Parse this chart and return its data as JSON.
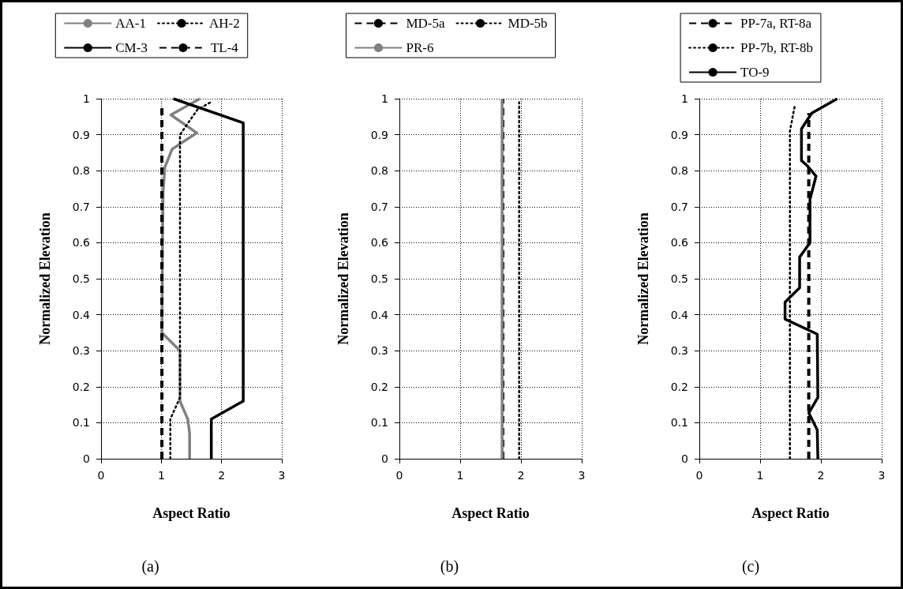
{
  "chart_data": [
    {
      "type": "line",
      "xlabel": "Aspect Ratio",
      "ylabel": "Normalized Elevation",
      "annotations": [
        "(a)"
      ],
      "xlim": [
        0,
        3
      ],
      "xticks": [
        0,
        1,
        2,
        3
      ],
      "ylim": [
        0,
        1
      ],
      "yticks": [
        0,
        0.1,
        0.2,
        0.3,
        0.4,
        0.5,
        0.6,
        0.7,
        0.8,
        0.9,
        1
      ],
      "grid": true,
      "legend": "top",
      "marker": "none",
      "series": [
        {
          "name": "AA-1",
          "color": "#808080",
          "line_style": "solid",
          "x": [
            1.47,
            1.47,
            1.44,
            1.31,
            1.31,
            1.01,
            1.02,
            1.03,
            1.06,
            1.18,
            1.59,
            1.16,
            1.64
          ],
          "values": [
            0,
            0.07,
            0.11,
            0.16,
            0.3,
            0.35,
            0.6,
            0.74,
            0.81,
            0.86,
            0.905,
            0.955,
            1
          ]
        },
        {
          "name": "AH-2",
          "color": "#000000",
          "line_style": "dotted",
          "x": [
            1.15,
            1.15,
            1.31,
            1.31,
            1.6,
            1.82
          ],
          "values": [
            0,
            0.11,
            0.17,
            0.9,
            0.97,
            0.99
          ]
        },
        {
          "name": "CM-3",
          "color": "#000000",
          "line_style": "solid",
          "x": [
            1.83,
            1.83,
            2.36,
            2.36,
            1.2
          ],
          "values": [
            0,
            0.11,
            0.16,
            0.933,
            1
          ]
        },
        {
          "name": "TL-4",
          "color": "#000000",
          "line_style": "dashed",
          "x": [
            1.01,
            1.01
          ],
          "values": [
            0,
            0.975
          ]
        }
      ]
    },
    {
      "type": "line",
      "xlabel": "Aspect Ratio",
      "ylabel": "Normalized Elevation",
      "annotations": [
        "(b)"
      ],
      "xlim": [
        0,
        3
      ],
      "xticks": [
        0,
        1,
        2,
        3
      ],
      "ylim": [
        0,
        1
      ],
      "yticks": [
        0,
        0.1,
        0.2,
        0.3,
        0.4,
        0.5,
        0.6,
        0.7,
        0.8,
        0.9,
        1
      ],
      "grid": true,
      "legend": "top",
      "marker": "none",
      "series": [
        {
          "name": "MD-5a",
          "color": "#000000",
          "line_style": "dashed",
          "x": [
            1.7,
            1.7
          ],
          "values": [
            0,
            1
          ]
        },
        {
          "name": "MD-5b",
          "color": "#000000",
          "line_style": "dotted",
          "x": [
            1.97,
            1.97
          ],
          "values": [
            0,
            0.99
          ]
        },
        {
          "name": "PR-6",
          "color": "#808080",
          "line_style": "solid",
          "x": [
            1.69,
            1.69
          ],
          "values": [
            0,
            1
          ]
        }
      ]
    },
    {
      "type": "line",
      "xlabel": "Aspect Ratio",
      "ylabel": "Normalized Elevation",
      "annotations": [
        "(c)"
      ],
      "xlim": [
        0,
        3
      ],
      "xticks": [
        0,
        1,
        2,
        3
      ],
      "ylim": [
        0,
        1
      ],
      "yticks": [
        0,
        0.1,
        0.2,
        0.3,
        0.4,
        0.5,
        0.6,
        0.7,
        0.8,
        0.9,
        1
      ],
      "grid": true,
      "legend": "top",
      "marker": "none",
      "series": [
        {
          "name": "PP-7a, RT-8a",
          "color": "#000000",
          "line_style": "dashed",
          "x": [
            1.8,
            1.8
          ],
          "values": [
            0,
            0.96
          ]
        },
        {
          "name": "PP-7b, RT-8b",
          "color": "#000000",
          "line_style": "dotted",
          "x": [
            1.49,
            1.49,
            1.57
          ],
          "values": [
            0,
            0.91,
            0.98
          ]
        },
        {
          "name": "TO-9",
          "color": "#000000",
          "line_style": "solid",
          "x": [
            1.95,
            1.94,
            1.8,
            1.95,
            1.94,
            1.41,
            1.41,
            1.65,
            1.65,
            1.82,
            1.82,
            1.92,
            1.78,
            1.68,
            1.68,
            1.85,
            2.27
          ],
          "values": [
            0,
            0.08,
            0.127,
            0.17,
            0.346,
            0.388,
            0.435,
            0.475,
            0.56,
            0.6,
            0.72,
            0.785,
            0.813,
            0.828,
            0.916,
            0.96,
            1
          ]
        }
      ]
    }
  ]
}
